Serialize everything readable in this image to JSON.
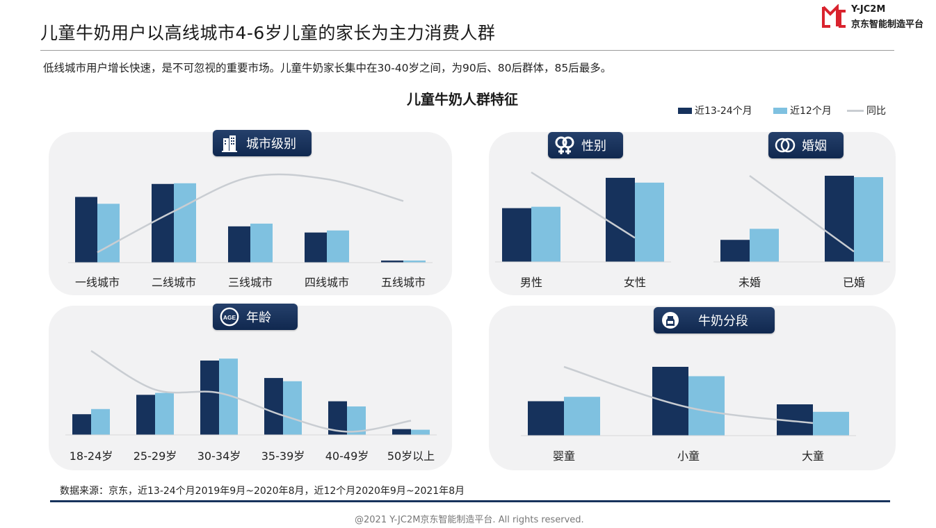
{
  "header": {
    "title": "儿童牛奶用户以高线城市4-6岁儿童的家长为主力消费人群",
    "subtitle": "低线城市用户增长快速，是不可忽视的重要市场。儿童牛奶家长集中在30-40岁之间，为90后、80后群体，85后最多。",
    "brand_line1": "Y-JC2M",
    "brand_line2": "京东智能制造平台"
  },
  "main_title": "儿童牛奶人群特征",
  "legend": {
    "s1": "近13-24个月",
    "s2": "近12个月",
    "line": "同比"
  },
  "colors": {
    "dark": "#16325c",
    "light": "#7fc1e0",
    "line": "#c9cdd2",
    "panel": "#f2f2f3"
  },
  "badges": {
    "city": "城市级别",
    "gender": "性别",
    "marriage": "婚姻",
    "age": "年龄",
    "milk": "牛奶分段",
    "age_icon_text": "AGE"
  },
  "chart_data": [
    {
      "id": "city",
      "type": "bar",
      "title": "城市级别",
      "categories": [
        "一线城市",
        "二线城市",
        "三线城市",
        "四线城市",
        "五线城市"
      ],
      "series": [
        {
          "name": "近13-24个月",
          "values": [
            96,
            115,
            53,
            44,
            3
          ]
        },
        {
          "name": "近12个月",
          "values": [
            86,
            116,
            57,
            47,
            3
          ]
        },
        {
          "name": "同比",
          "values": [
            15,
            75,
            125,
            122,
            90
          ]
        }
      ],
      "ylim": [
        0,
        130
      ]
    },
    {
      "id": "gender",
      "type": "bar",
      "title": "性别",
      "categories": [
        "男性",
        "女性"
      ],
      "series": [
        {
          "name": "近13-24个月",
          "values": [
            78,
            122
          ]
        },
        {
          "name": "近12个月",
          "values": [
            80,
            115
          ]
        },
        {
          "name": "同比",
          "values": [
            130,
            35
          ]
        }
      ],
      "ylim": [
        0,
        130
      ]
    },
    {
      "id": "marriage",
      "type": "bar",
      "title": "婚姻",
      "categories": [
        "未婚",
        "已婚"
      ],
      "series": [
        {
          "name": "近13-24个月",
          "values": [
            32,
            125
          ]
        },
        {
          "name": "近12个月",
          "values": [
            48,
            123
          ]
        },
        {
          "name": "同比",
          "values": [
            125,
            15
          ]
        }
      ],
      "ylim": [
        0,
        130
      ]
    },
    {
      "id": "age",
      "type": "bar",
      "title": "年龄",
      "categories": [
        "18-24岁",
        "25-29岁",
        "30-34岁",
        "35-39岁",
        "40-49岁",
        "50岁以上"
      ],
      "series": [
        {
          "name": "近13-24个月",
          "values": [
            32,
            62,
            115,
            88,
            52,
            9
          ]
        },
        {
          "name": "近12个月",
          "values": [
            40,
            65,
            118,
            83,
            44,
            8
          ]
        },
        {
          "name": "同比",
          "values": [
            130,
            70,
            65,
            30,
            5,
            22
          ]
        }
      ],
      "ylim": [
        0,
        130
      ]
    },
    {
      "id": "milk",
      "type": "bar",
      "title": "牛奶分段",
      "categories": [
        "婴童",
        "小童",
        "大童"
      ],
      "series": [
        {
          "name": "近13-24个月",
          "values": [
            55,
            110,
            50
          ]
        },
        {
          "name": "近12个月",
          "values": [
            62,
            95,
            38
          ]
        },
        {
          "name": "同比",
          "values": [
            110,
            45,
            20
          ]
        }
      ],
      "ylim": [
        0,
        130
      ]
    }
  ],
  "source": "数据来源：京东，近13-24个月2019年9月~2020年8月，近12个月2020年9月~2021年8月",
  "copyright": "@2021 Y-JC2M京东智能制造平台. All rights reserved."
}
